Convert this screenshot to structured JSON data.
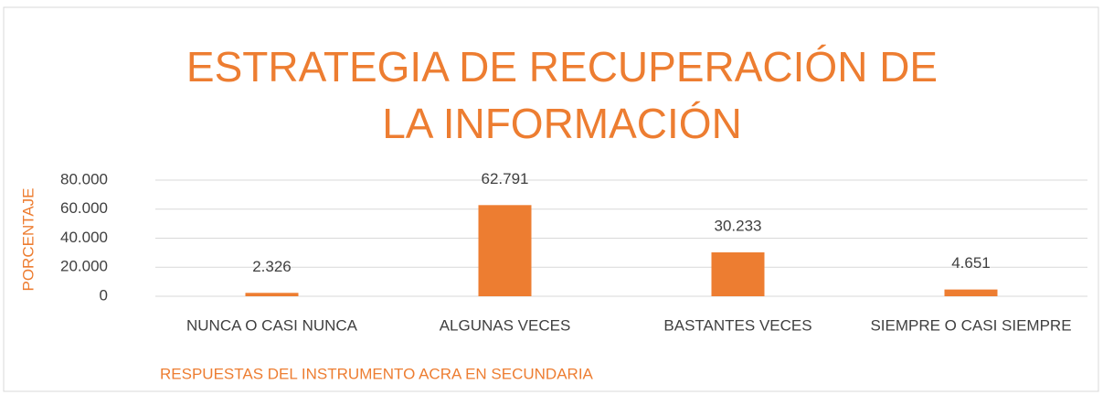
{
  "chart_data": {
    "type": "bar",
    "title": "ESTRATEGIA DE RECUPERACIÓN DE LA INFORMACIÓN",
    "y_label": "PORCENTAJE",
    "x_label": "RESPUESTAS DEL INSTRUMENTO ACRA EN SECUNDARIA",
    "categories": [
      "NUNCA O CASI NUNCA",
      "ALGUNAS VECES",
      "BASTANTES VECES",
      "SIEMPRE O CASI SIEMPRE"
    ],
    "values": [
      2.326,
      62.791,
      30.233,
      4.651
    ],
    "color": "#ed7d31",
    "ylim": [
      0,
      80
    ],
    "yticks": [
      0,
      {
        "value": 20,
        "label": "20.000"
      },
      {
        "value": 40,
        "label": "40.000"
      },
      {
        "value": 60,
        "label": "60.000"
      },
      {
        "value": 80,
        "label": "80.000"
      }
    ],
    "grid": true
  }
}
